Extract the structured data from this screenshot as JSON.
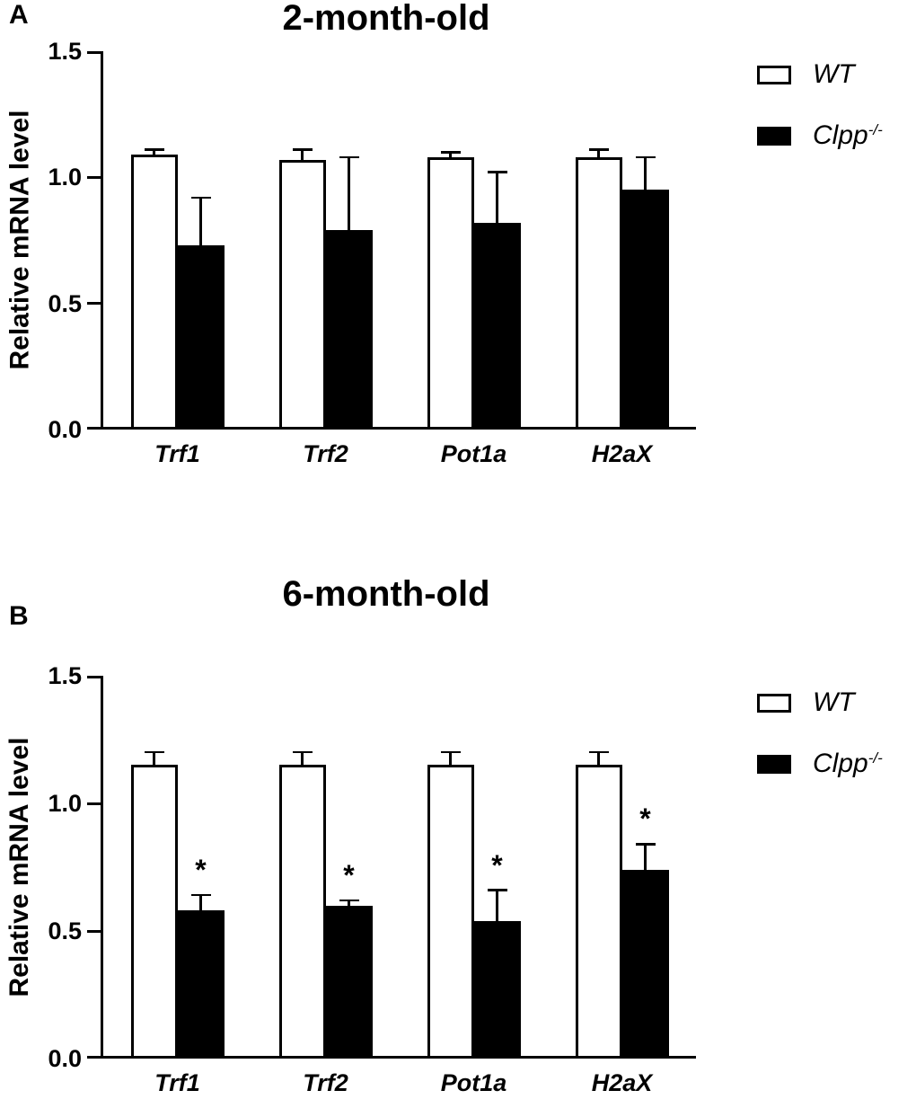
{
  "chart_data": [
    {
      "type": "bar",
      "panel": "A",
      "title": "2-month-old",
      "ylabel": "Relative mRNA level",
      "ylim": [
        0,
        1.5
      ],
      "yticks": [
        "0.0",
        "0.5",
        "1.0",
        "1.5"
      ],
      "categories": [
        "Trf1",
        "Trf2",
        "Pot1a",
        "H2aX"
      ],
      "series": [
        {
          "name": "WT",
          "fill": "#ffffff",
          "values": [
            1.09,
            1.07,
            1.08,
            1.08
          ],
          "errors": [
            0.02,
            0.04,
            0.02,
            0.03
          ]
        },
        {
          "name": "Clpp-/-",
          "fill": "#000000",
          "values": [
            0.73,
            0.79,
            0.82,
            0.95
          ],
          "errors": [
            0.19,
            0.29,
            0.2,
            0.13
          ]
        }
      ],
      "significance": [
        "",
        "",
        "",
        ""
      ],
      "grid": false,
      "legend_position": "right"
    },
    {
      "type": "bar",
      "panel": "B",
      "title": "6-month-old",
      "ylabel": "Relative mRNA level",
      "ylim": [
        0,
        1.5
      ],
      "yticks": [
        "0.0",
        "0.5",
        "1.0",
        "1.5"
      ],
      "categories": [
        "Trf1",
        "Trf2",
        "Pot1a",
        "H2aX"
      ],
      "series": [
        {
          "name": "WT",
          "fill": "#ffffff",
          "values": [
            1.15,
            1.15,
            1.15,
            1.15
          ],
          "errors": [
            0.05,
            0.05,
            0.05,
            0.05
          ]
        },
        {
          "name": "Clpp-/-",
          "fill": "#000000",
          "values": [
            0.58,
            0.6,
            0.54,
            0.74
          ],
          "errors": [
            0.06,
            0.02,
            0.12,
            0.1
          ]
        }
      ],
      "significance": [
        "*",
        "*",
        "*",
        "*"
      ],
      "grid": false,
      "legend_position": "right"
    }
  ],
  "legend": {
    "items": [
      {
        "text": "WT",
        "sup": "",
        "fill": "#ffffff"
      },
      {
        "text": "Clpp",
        "sup": "-/-",
        "fill": "#000000"
      }
    ]
  },
  "colors": {
    "foreground": "#000000",
    "background": "#ffffff"
  }
}
